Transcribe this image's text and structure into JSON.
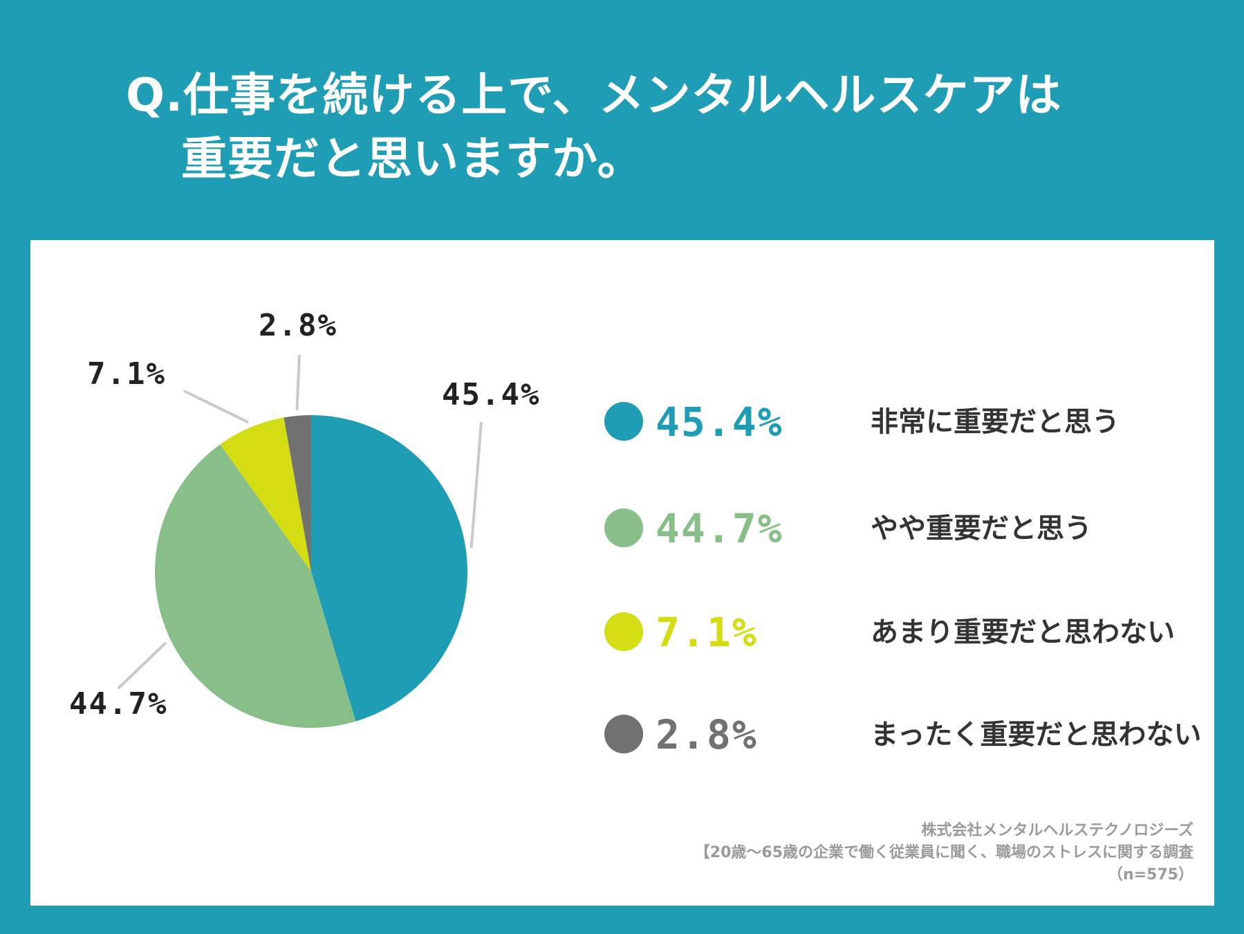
{
  "title": {
    "line1": "Q.仕事を続ける上で、メンタルヘルスケアは",
    "line2": "重要だと思いますか。"
  },
  "chart_data": {
    "type": "pie",
    "categories": [
      "非常に重要だと思う",
      "やや重要だと思う",
      "あまり重要だと思わない",
      "まったく重要だと思わない"
    ],
    "values": [
      45.4,
      44.7,
      7.1,
      2.8
    ],
    "value_labels": [
      "45.4%",
      "44.7%",
      "7.1%",
      "2.8%"
    ],
    "colors": [
      "#1f9db5",
      "#88bf88",
      "#d4dd14",
      "#717171"
    ],
    "start_angle": "12 o'clock",
    "direction": "clockwise",
    "legend_position": "right"
  },
  "legend": [
    {
      "value": "45.4%",
      "label": "非常に重要だと思う",
      "color": "#1f9db5"
    },
    {
      "value": "44.7%",
      "label": "やや重要だと思う",
      "color": "#88bf88"
    },
    {
      "value": "7.1%",
      "label": "あまり重要だと思わない",
      "color": "#d4dd14"
    },
    {
      "value": "2.8%",
      "label": "まったく重要だと思わない",
      "color": "#717171"
    }
  ],
  "source": {
    "line1": "株式会社メンタルヘルステクノロジーズ",
    "line2": "【20歳～65歳の企業で働く従業員に聞く、職場のストレスに関する調査",
    "line3": "（n=575）"
  }
}
